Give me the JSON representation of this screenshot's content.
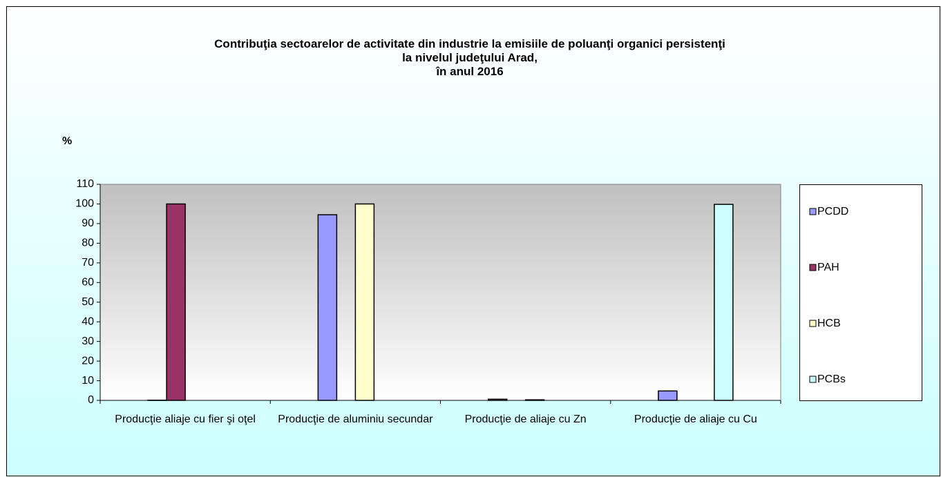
{
  "chart_data": {
    "type": "bar",
    "title": "Contribuţia sectoarelor de activitate din industrie la  emisiile de poluanţi organici persistenţi\nla nivelul judeţului Arad,\nîn anul 2016",
    "y_label": "%",
    "categories": [
      "Producţie aliaje cu fier şi oţel",
      "Producţie de aluminiu secundar",
      "Producţie de aliaje cu Zn",
      "Producţie de aliaje cu Cu"
    ],
    "series": [
      {
        "name": "PCDD",
        "color": "#9999ff",
        "values": [
          0.1,
          94.5,
          0.6,
          4.8
        ]
      },
      {
        "name": "PAH",
        "color": "#993366",
        "values": [
          100,
          null,
          null,
          null
        ]
      },
      {
        "name": "HCB",
        "color": "#ffffcc",
        "values": [
          null,
          100,
          0.3,
          null
        ]
      },
      {
        "name": "PCBs",
        "color": "#ccffff",
        "values": [
          null,
          null,
          null,
          99.8
        ]
      }
    ],
    "ylim": [
      0,
      110
    ],
    "yticks": [
      0,
      10,
      20,
      30,
      40,
      50,
      60,
      70,
      80,
      90,
      100,
      110
    ],
    "legend": "right"
  }
}
